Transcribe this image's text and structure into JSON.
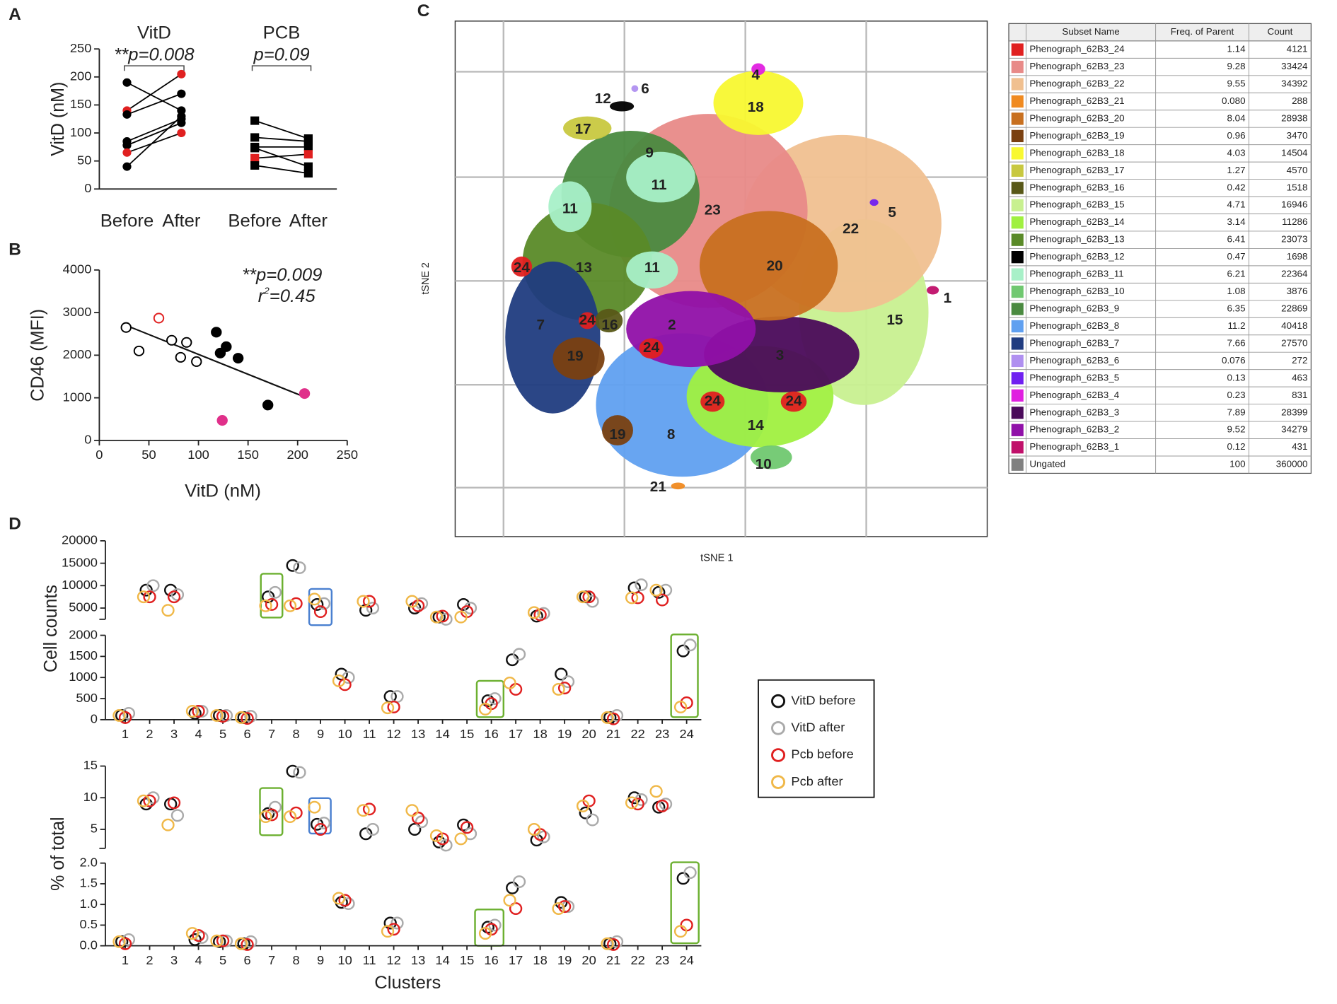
{
  "chart_data": [
    {
      "type": "paired",
      "panel": "A",
      "ylabel": "VitD (nM)",
      "categories": [
        "Before",
        "After",
        "Before",
        "After"
      ],
      "ylim": [
        0,
        250
      ],
      "yticks": [
        0,
        50,
        100,
        150,
        200,
        250
      ],
      "groups": [
        {
          "name": "VitD",
          "annotation": "**p=0.008",
          "marker": "circle",
          "series": [
            {
              "color": "#000000",
              "values": [
                190,
                140
              ]
            },
            {
              "color": "#e02020",
              "values": [
                140,
                205
              ]
            },
            {
              "color": "#000000",
              "values": [
                133,
                170
              ]
            },
            {
              "color": "#000000",
              "values": [
                85,
                125
              ]
            },
            {
              "color": "#000000",
              "values": [
                78,
                118
              ]
            },
            {
              "color": "#e02020",
              "values": [
                65,
                100
              ]
            },
            {
              "color": "#000000",
              "values": [
                40,
                130
              ]
            }
          ]
        },
        {
          "name": "PCB",
          "annotation": "p=0.09",
          "marker": "square",
          "series": [
            {
              "color": "#000000",
              "values": [
                122,
                90
              ]
            },
            {
              "color": "#000000",
              "values": [
                92,
                85
              ]
            },
            {
              "color": "#000000",
              "values": [
                75,
                75
              ]
            },
            {
              "color": "#000000",
              "values": [
                73,
                40
              ]
            },
            {
              "color": "#e02020",
              "values": [
                55,
                62
              ]
            },
            {
              "color": "#000000",
              "values": [
                42,
                28
              ]
            }
          ]
        }
      ]
    },
    {
      "type": "scatter",
      "panel": "B",
      "xlabel": "VitD (nM)",
      "ylabel": "CD46 (MFI)",
      "xlim": [
        0,
        250
      ],
      "xticks": [
        0,
        50,
        100,
        150,
        200,
        250
      ],
      "ylim": [
        0,
        4000
      ],
      "yticks": [
        0,
        1000,
        2000,
        3000,
        4000
      ],
      "annotation": "**p=0.009",
      "r2": {
        "base": "r",
        "sup": "2",
        "rest": "=0.45"
      },
      "series": [
        {
          "color": "#000000",
          "filled": false,
          "x": [
            27,
            40,
            73,
            82,
            88,
            98
          ],
          "values": [
            2650,
            2100,
            2350,
            1950,
            2300,
            1850
          ]
        },
        {
          "color": "#e02020",
          "filled": false,
          "x": [
            60
          ],
          "values": [
            2870
          ]
        },
        {
          "color": "#000000",
          "filled": true,
          "x": [
            118,
            122,
            128,
            140,
            170
          ],
          "values": [
            2540,
            2050,
            2200,
            1930,
            830
          ]
        },
        {
          "color": "#e0308a",
          "filled": true,
          "x": [
            124,
            207
          ],
          "values": [
            470,
            1100
          ]
        }
      ],
      "fit": {
        "x": [
          27,
          207
        ],
        "values": [
          2700,
          1020
        ]
      }
    },
    {
      "type": "tsne",
      "panel": "C",
      "xlabel": "tSNE 1",
      "ylabel": "tSNE 2",
      "labels": [
        "4",
        "18",
        "6",
        "12",
        "17",
        "9",
        "11",
        "11",
        "11",
        "23",
        "22",
        "5",
        "13",
        "20",
        "24",
        "1",
        "15",
        "7",
        "24",
        "16",
        "2",
        "24",
        "19",
        "3",
        "24",
        "24",
        "14",
        "19",
        "8",
        "10",
        "21"
      ]
    },
    {
      "type": "broken_dot",
      "panel": "D",
      "ylabel": "Cell counts",
      "categories": [
        "1",
        "2",
        "3",
        "4",
        "5",
        "6",
        "7",
        "8",
        "9",
        "10",
        "11",
        "12",
        "13",
        "14",
        "15",
        "16",
        "17",
        "18",
        "19",
        "20",
        "21",
        "22",
        "23",
        "24"
      ],
      "segments": [
        {
          "ylim": [
            0,
            2000
          ],
          "yticks": [
            0,
            500,
            1000,
            1500,
            2000
          ]
        },
        {
          "ylim": [
            2500,
            20000
          ],
          "yticks": [
            5000,
            10000,
            15000,
            20000
          ]
        }
      ],
      "series": [
        {
          "name": "VitD before",
          "color": "#111111",
          "values": [
            100,
            9000,
            9000,
            150,
            100,
            50,
            7500,
            14500,
            5800,
            1080,
            4500,
            550,
            5000,
            3000,
            5800,
            450,
            1420,
            3200,
            1080,
            7500,
            50,
            9500,
            8500,
            1630
          ]
        },
        {
          "name": "VitD after",
          "color": "#aaaaaa",
          "values": [
            150,
            10000,
            8000,
            200,
            100,
            80,
            8500,
            14000,
            6000,
            1000,
            5000,
            550,
            6000,
            2500,
            5000,
            500,
            1550,
            3800,
            900,
            6500,
            100,
            10200,
            9000,
            1770
          ]
        },
        {
          "name": "Pcb before",
          "color": "#e02020",
          "values": [
            50,
            7500,
            7500,
            200,
            80,
            30,
            5800,
            6000,
            4200,
            830,
            6500,
            300,
            5500,
            3200,
            4200,
            380,
            720,
            3500,
            750,
            7500,
            20,
            7300,
            6800,
            400
          ]
        },
        {
          "name": "Pcb after",
          "color": "#f0b848",
          "values": [
            100,
            7500,
            4500,
            200,
            100,
            50,
            5500,
            5500,
            7000,
            920,
            6500,
            280,
            6500,
            3000,
            3000,
            250,
            870,
            4000,
            720,
            7500,
            50,
            7300,
            9000,
            300
          ]
        }
      ]
    },
    {
      "type": "broken_dot",
      "ylabel": "% of total",
      "xlabel": "Clusters",
      "categories": [
        "1",
        "2",
        "3",
        "4",
        "5",
        "6",
        "7",
        "8",
        "9",
        "10",
        "11",
        "12",
        "13",
        "14",
        "15",
        "16",
        "17",
        "18",
        "19",
        "20",
        "21",
        "22",
        "23",
        "24"
      ],
      "segments": [
        {
          "ylim": [
            0,
            2
          ],
          "yticks": [
            {
              "value": 0,
              "label": "0.0"
            },
            0.5,
            {
              "value": 1,
              "label": "1.0"
            },
            1.5,
            {
              "value": 2,
              "label": "2.0"
            }
          ]
        },
        {
          "ylim": [
            2,
            15
          ],
          "yticks": [
            5,
            10,
            15
          ]
        }
      ],
      "series": [
        {
          "color": "#111111",
          "values": [
            0.1,
            9,
            9,
            0.15,
            0.1,
            0.05,
            7.5,
            14.2,
            5.8,
            1.05,
            4.3,
            0.55,
            5,
            3,
            5.7,
            0.45,
            1.4,
            3.3,
            1.05,
            7.6,
            0.05,
            10,
            8.5,
            1.63
          ]
        },
        {
          "color": "#aaaaaa",
          "values": [
            0.15,
            10,
            7.2,
            0.2,
            0.12,
            0.1,
            8.5,
            14,
            6,
            1.02,
            5,
            0.55,
            6.2,
            2.5,
            4.3,
            0.5,
            1.55,
            3.8,
            0.95,
            6.5,
            0.1,
            9.7,
            9,
            1.77
          ]
        },
        {
          "color": "#e02020",
          "values": [
            0.05,
            9.5,
            9.2,
            0.25,
            0.12,
            0.03,
            7.3,
            7.6,
            5,
            1.1,
            8.2,
            0.4,
            6.8,
            3.5,
            5.3,
            0.4,
            0.9,
            4.2,
            0.95,
            9.5,
            0.03,
            9,
            8.7,
            0.5
          ]
        },
        {
          "color": "#f0b848",
          "values": [
            0.1,
            9.5,
            5.7,
            0.3,
            0.12,
            0.05,
            7,
            7,
            8.5,
            1.15,
            8,
            0.35,
            8,
            4,
            3.5,
            0.3,
            1.1,
            5,
            0.9,
            8.7,
            0.05,
            9.2,
            11,
            0.35
          ]
        }
      ]
    }
  ],
  "table": {
    "header": [
      "Subset Name",
      "Freq. of Parent",
      "Count"
    ],
    "rows": [
      {
        "color": "#e02020",
        "name": "Phenograph_62B3_24",
        "freq": "1.14",
        "count": 4121
      },
      {
        "color": "#e88a88",
        "name": "Phenograph_62B3_23",
        "freq": "9.28",
        "count": 33424
      },
      {
        "color": "#f0c090",
        "name": "Phenograph_62B3_22",
        "freq": "9.55",
        "count": 34392
      },
      {
        "color": "#f08a20",
        "name": "Phenograph_62B3_21",
        "freq": "0.080",
        "count": 288
      },
      {
        "color": "#c87020",
        "name": "Phenograph_62B3_20",
        "freq": "8.04",
        "count": 28938
      },
      {
        "color": "#7a4010",
        "name": "Phenograph_62B3_19",
        "freq": "0.96",
        "count": 3470
      },
      {
        "color": "#f8f830",
        "name": "Phenograph_62B3_18",
        "freq": "4.03",
        "count": 14504
      },
      {
        "color": "#c8c840",
        "name": "Phenograph_62B3_17",
        "freq": "1.27",
        "count": 4570
      },
      {
        "color": "#585818",
        "name": "Phenograph_62B3_16",
        "freq": "0.42",
        "count": 1518
      },
      {
        "color": "#c8f090",
        "name": "Phenograph_62B3_15",
        "freq": "4.71",
        "count": 16946
      },
      {
        "color": "#a0f040",
        "name": "Phenograph_62B3_14",
        "freq": "3.14",
        "count": 11286
      },
      {
        "color": "#5a8a28",
        "name": "Phenograph_62B3_13",
        "freq": "6.41",
        "count": 23073
      },
      {
        "color": "#000000",
        "name": "Phenograph_62B3_12",
        "freq": "0.47",
        "count": 1698
      },
      {
        "color": "#a8f0c8",
        "name": "Phenograph_62B3_11",
        "freq": "6.21",
        "count": 22364
      },
      {
        "color": "#70c870",
        "name": "Phenograph_62B3_10",
        "freq": "1.08",
        "count": 3876
      },
      {
        "color": "#4a8a40",
        "name": "Phenograph_62B3_9",
        "freq": "6.35",
        "count": 22869
      },
      {
        "color": "#60a0f0",
        "name": "Phenograph_62B3_8",
        "freq": "11.2",
        "count": 40418
      },
      {
        "color": "#203c80",
        "name": "Phenograph_62B3_7",
        "freq": "7.66",
        "count": 27570
      },
      {
        "color": "#b090f0",
        "name": "Phenograph_62B3_6",
        "freq": "0.076",
        "count": 272
      },
      {
        "color": "#7020f0",
        "name": "Phenograph_62B3_5",
        "freq": "0.13",
        "count": 463
      },
      {
        "color": "#e020e0",
        "name": "Phenograph_62B3_4",
        "freq": "0.23",
        "count": 831
      },
      {
        "color": "#4a0a5a",
        "name": "Phenograph_62B3_3",
        "freq": "7.89",
        "count": 28399
      },
      {
        "color": "#9010a8",
        "name": "Phenograph_62B3_2",
        "freq": "9.52",
        "count": 34279
      },
      {
        "color": "#c0106a",
        "name": "Phenograph_62B3_1",
        "freq": "0.12",
        "count": 431
      },
      {
        "color": "#808080",
        "name": "Ungated",
        "freq": "100",
        "count": 360000
      }
    ]
  }
}
